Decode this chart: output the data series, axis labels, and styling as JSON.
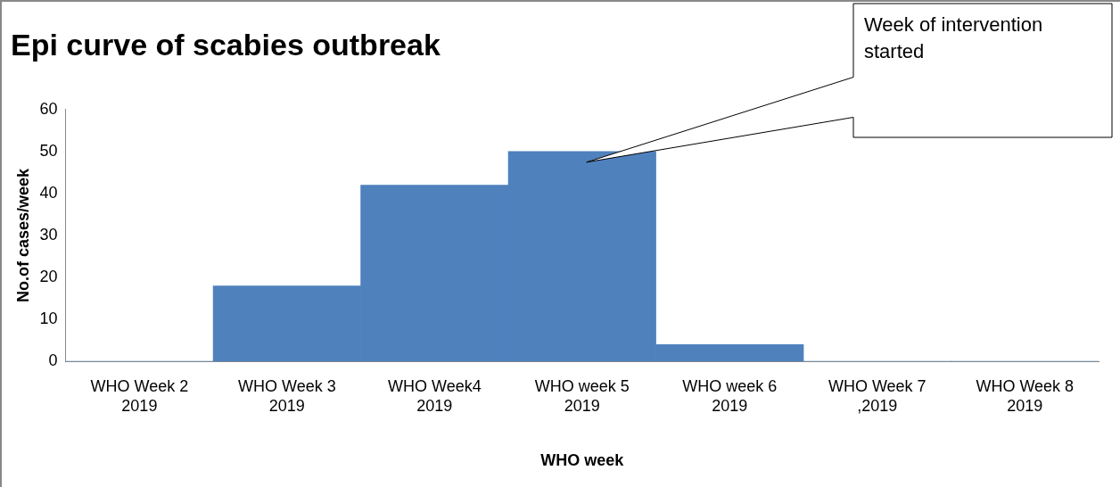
{
  "chart_data": {
    "type": "bar",
    "title": "Epi curve of scabies outbreak",
    "xlabel": "WHO week",
    "ylabel": "No.of cases/week",
    "categories": [
      "WHO Week 2\n2019",
      "WHO Week 3\n2019",
      "WHO Week4\n2019",
      "WHO week 5\n2019",
      "WHO week 6\n2019",
      "WHO Week 7\n,2019",
      "WHO Week 8\n2019"
    ],
    "values": [
      0,
      18,
      42,
      50,
      4,
      0,
      0
    ],
    "color": "#4f81bd",
    "ylim": [
      0,
      60
    ],
    "yticks": [
      0,
      10,
      20,
      30,
      40,
      50,
      60
    ],
    "grid": false,
    "legend": false,
    "annotations": [
      "Week of intervention started"
    ]
  }
}
